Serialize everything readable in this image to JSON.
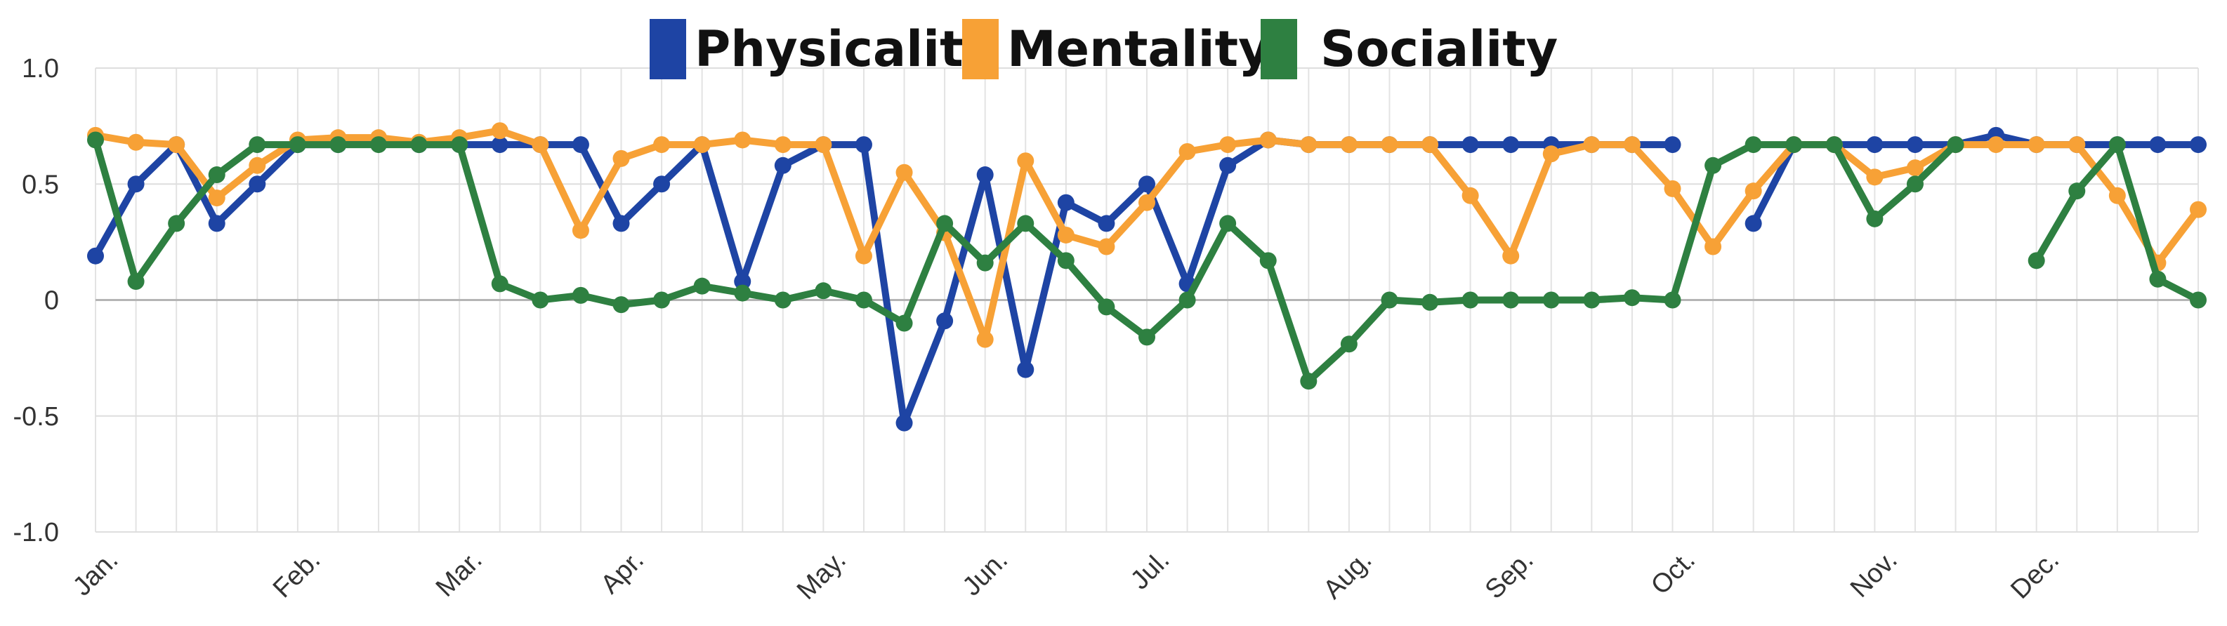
{
  "chart_data": {
    "type": "line",
    "title": "",
    "xlabel": "",
    "ylabel": "",
    "ylim": [
      -1.0,
      1.0
    ],
    "yticks": [
      1.0,
      0.5,
      0,
      -0.5,
      -1.0
    ],
    "ytick_labels": [
      "1.0",
      "0.5",
      "0",
      "-0.5",
      "-1.0"
    ],
    "month_labels": [
      "Jan.",
      "Feb.",
      "Mar.",
      "Apr.",
      "May.",
      "Jun.",
      "Jul.",
      "Aug.",
      "Sep.",
      "Oct.",
      "Nov.",
      "Dec."
    ],
    "month_start_index": [
      0,
      5,
      9,
      13,
      18,
      22,
      26,
      31,
      35,
      39,
      44,
      48
    ],
    "n_points": 53,
    "grid": true,
    "legend_position": "top-center",
    "series": [
      {
        "name": "Physicality",
        "color": "#1e44a4",
        "values": [
          0.19,
          0.5,
          0.67,
          0.33,
          0.5,
          0.67,
          0.67,
          0.68,
          0.67,
          0.67,
          0.67,
          0.67,
          0.67,
          0.33,
          0.5,
          0.67,
          0.08,
          0.58,
          0.67,
          0.67,
          -0.53,
          -0.09,
          0.54,
          -0.3,
          0.42,
          0.33,
          0.5,
          0.07,
          0.58,
          0.69,
          0.67,
          0.67,
          0.67,
          0.67,
          0.67,
          0.67,
          0.67,
          0.67,
          0.67,
          0.67,
          null,
          0.33,
          0.67,
          0.67,
          0.67,
          0.67,
          0.67,
          0.71,
          0.67,
          0.67,
          0.67,
          0.67,
          0.67
        ]
      },
      {
        "name": "Mentality",
        "color": "#f7a136",
        "values": [
          0.71,
          0.68,
          0.67,
          0.44,
          0.58,
          0.69,
          0.7,
          0.7,
          0.68,
          0.7,
          0.73,
          0.67,
          0.3,
          0.61,
          0.67,
          0.67,
          0.69,
          0.67,
          0.67,
          0.19,
          0.55,
          0.29,
          -0.17,
          0.6,
          0.28,
          0.23,
          0.42,
          0.64,
          0.67,
          0.69,
          0.67,
          0.67,
          0.67,
          0.67,
          0.45,
          0.19,
          0.63,
          0.67,
          0.67,
          0.48,
          0.23,
          0.47,
          0.67,
          0.67,
          0.53,
          0.57,
          0.67,
          0.67,
          0.67,
          0.67,
          0.45,
          0.16,
          0.39
        ]
      },
      {
        "name": "Sociality",
        "color": "#2e8041",
        "values": [
          0.69,
          0.08,
          0.33,
          0.54,
          0.67,
          0.67,
          0.67,
          0.67,
          0.67,
          0.67,
          0.07,
          0.0,
          0.02,
          -0.02,
          0.0,
          0.06,
          0.03,
          0.0,
          0.04,
          0.0,
          -0.1,
          0.33,
          0.16,
          0.33,
          0.17,
          -0.03,
          -0.16,
          0.0,
          0.33,
          0.17,
          -0.35,
          -0.19,
          0.0,
          -0.01,
          0.0,
          0.0,
          0.0,
          0.0,
          0.01,
          0.0,
          0.58,
          0.67,
          0.67,
          0.67,
          0.35,
          0.5,
          0.67,
          null,
          0.17,
          0.47,
          0.67,
          0.09,
          0.0
        ]
      }
    ]
  }
}
